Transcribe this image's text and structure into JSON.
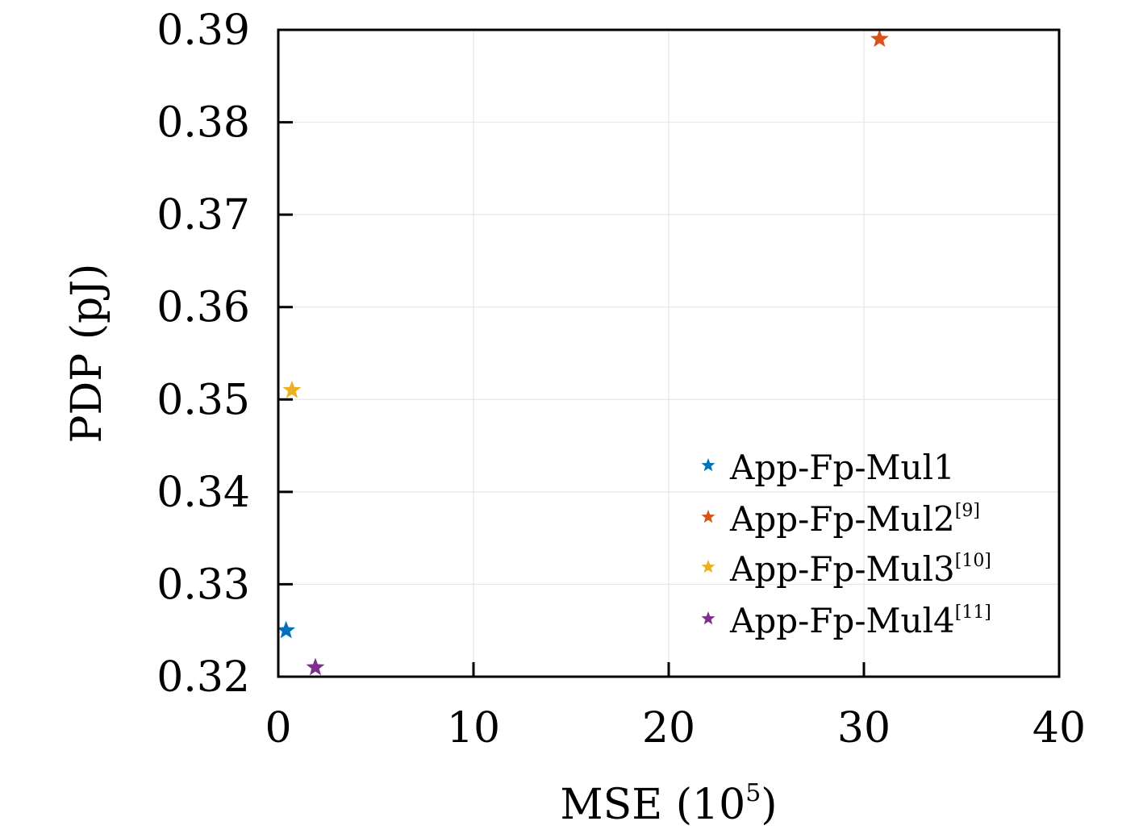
{
  "chart_data": {
    "type": "scatter",
    "xlabel": "MSE (10",
    "xlabel_sup": "5",
    "xlabel_suffix": ")",
    "ylabel": "PDP (pJ)",
    "xlim": [
      0,
      40
    ],
    "ylim": [
      0.32,
      0.39
    ],
    "xticks": [
      0,
      10,
      20,
      30,
      40
    ],
    "xtick_labels": [
      "0",
      "10",
      "20",
      "30",
      "40"
    ],
    "yticks": [
      0.32,
      0.33,
      0.34,
      0.35,
      0.36,
      0.37,
      0.38,
      0.39
    ],
    "ytick_labels": [
      "0.32",
      "0.33",
      "0.34",
      "0.35",
      "0.36",
      "0.37",
      "0.38",
      "0.39"
    ],
    "grid": true,
    "legend_position": "bottom-right",
    "marker": "star",
    "series": [
      {
        "name": "App-Fp-Mul1",
        "ref": "",
        "color": "#0072BD",
        "x": [
          0.4
        ],
        "y": [
          0.325
        ]
      },
      {
        "name": "App-Fp-Mul2",
        "ref": "[9]",
        "color": "#D95319",
        "x": [
          30.8
        ],
        "y": [
          0.389
        ]
      },
      {
        "name": "App-Fp-Mul3",
        "ref": "[10]",
        "color": "#EDB120",
        "x": [
          0.7
        ],
        "y": [
          0.351
        ]
      },
      {
        "name": "App-Fp-Mul4",
        "ref": "[11]",
        "color": "#7E2F8E",
        "x": [
          1.9
        ],
        "y": [
          0.321
        ]
      }
    ]
  }
}
